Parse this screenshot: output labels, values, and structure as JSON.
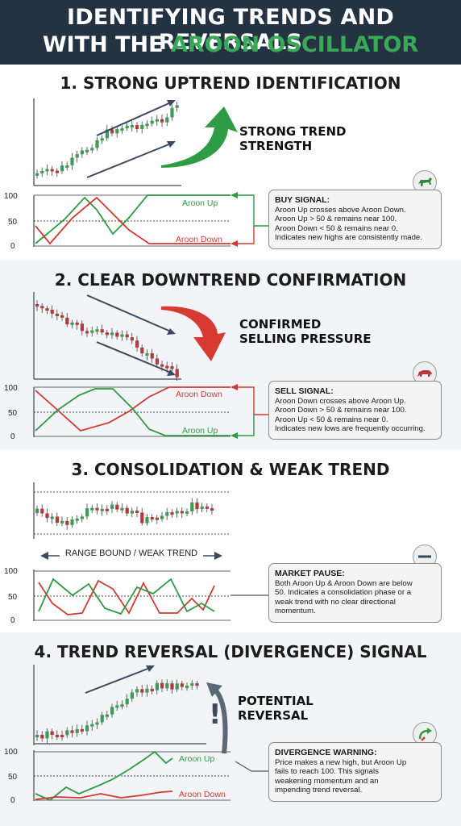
{
  "header": {
    "line1": "IDENTIFYING TRENDS AND REVERSALS",
    "line2_prefix": "WITH THE ",
    "line2_highlight": "AROON OSCILLATOR"
  },
  "colors": {
    "header_bg": "#243342",
    "highlight": "#3aa957",
    "aroon_up": "#2f9a44",
    "aroon_down": "#cf3b33",
    "candle_up": "#3f9a55",
    "candle_down": "#b23a3a"
  },
  "axis_ticks": [
    "100",
    "50",
    "0"
  ],
  "sections": [
    {
      "title": "1. STRONG UPTREND IDENTIFICATION",
      "callout": [
        "STRONG TREND",
        "STRENGTH"
      ],
      "arrow_icon": "green-up-arrow-icon",
      "badge_icon": "bull-icon",
      "up_label": "Aroon Up",
      "down_label": "Aroon Down",
      "box_title": "BUY SIGNAL:",
      "box_lines": [
        "Aroon Up crosses above Aroon Down.",
        "Aroon Up > 50 & remains near 100.",
        "Aroon Down < 50 & remains near 0.",
        "Indicates new highs are consistently made."
      ]
    },
    {
      "title": "2. CLEAR DOWNTREND CONFIRMATION",
      "callout": [
        "CONFIRMED",
        "SELLING PRESSURE"
      ],
      "arrow_icon": "red-down-arrow-icon",
      "badge_icon": "bear-icon",
      "up_label": "Aroon Up",
      "down_label": "Aroon Down",
      "box_title": "SELL SIGNAL:",
      "box_lines": [
        "Aroon Down crosses above Aroon Up.",
        "Aroon Down > 50 & remains near 100.",
        "Aroon Up < 50 & remains near 0.",
        "Indicates new lows are frequently occurring."
      ]
    },
    {
      "title": "3. CONSOLIDATION & WEAK TREND",
      "range_label": "RANGE BOUND / WEAK TREND",
      "badge_icon": "minus-icon",
      "box_title": "MARKET PAUSE:",
      "box_lines": [
        "Both Aroon Up & Aroon Down are below",
        "50. Indicates a consolidation phase or a",
        "weak trend with no clear directional",
        "momentum."
      ]
    },
    {
      "title": "4. TREND REVERSAL (DIVERGENCE) SIGNAL",
      "callout": [
        "POTENTIAL",
        "REVERSAL"
      ],
      "warn_mark": "!",
      "badge_icon": "reversal-arrow-icon",
      "up_label": "Aroon Up",
      "down_label": "Aroon Down",
      "box_title": "DIVERGENCE WARNING:",
      "box_lines": [
        "Price makes a new high, but Aroon Up",
        "fails to reach 100. This signals",
        "weakening momentum and an",
        "impending trend reversal."
      ]
    }
  ]
}
